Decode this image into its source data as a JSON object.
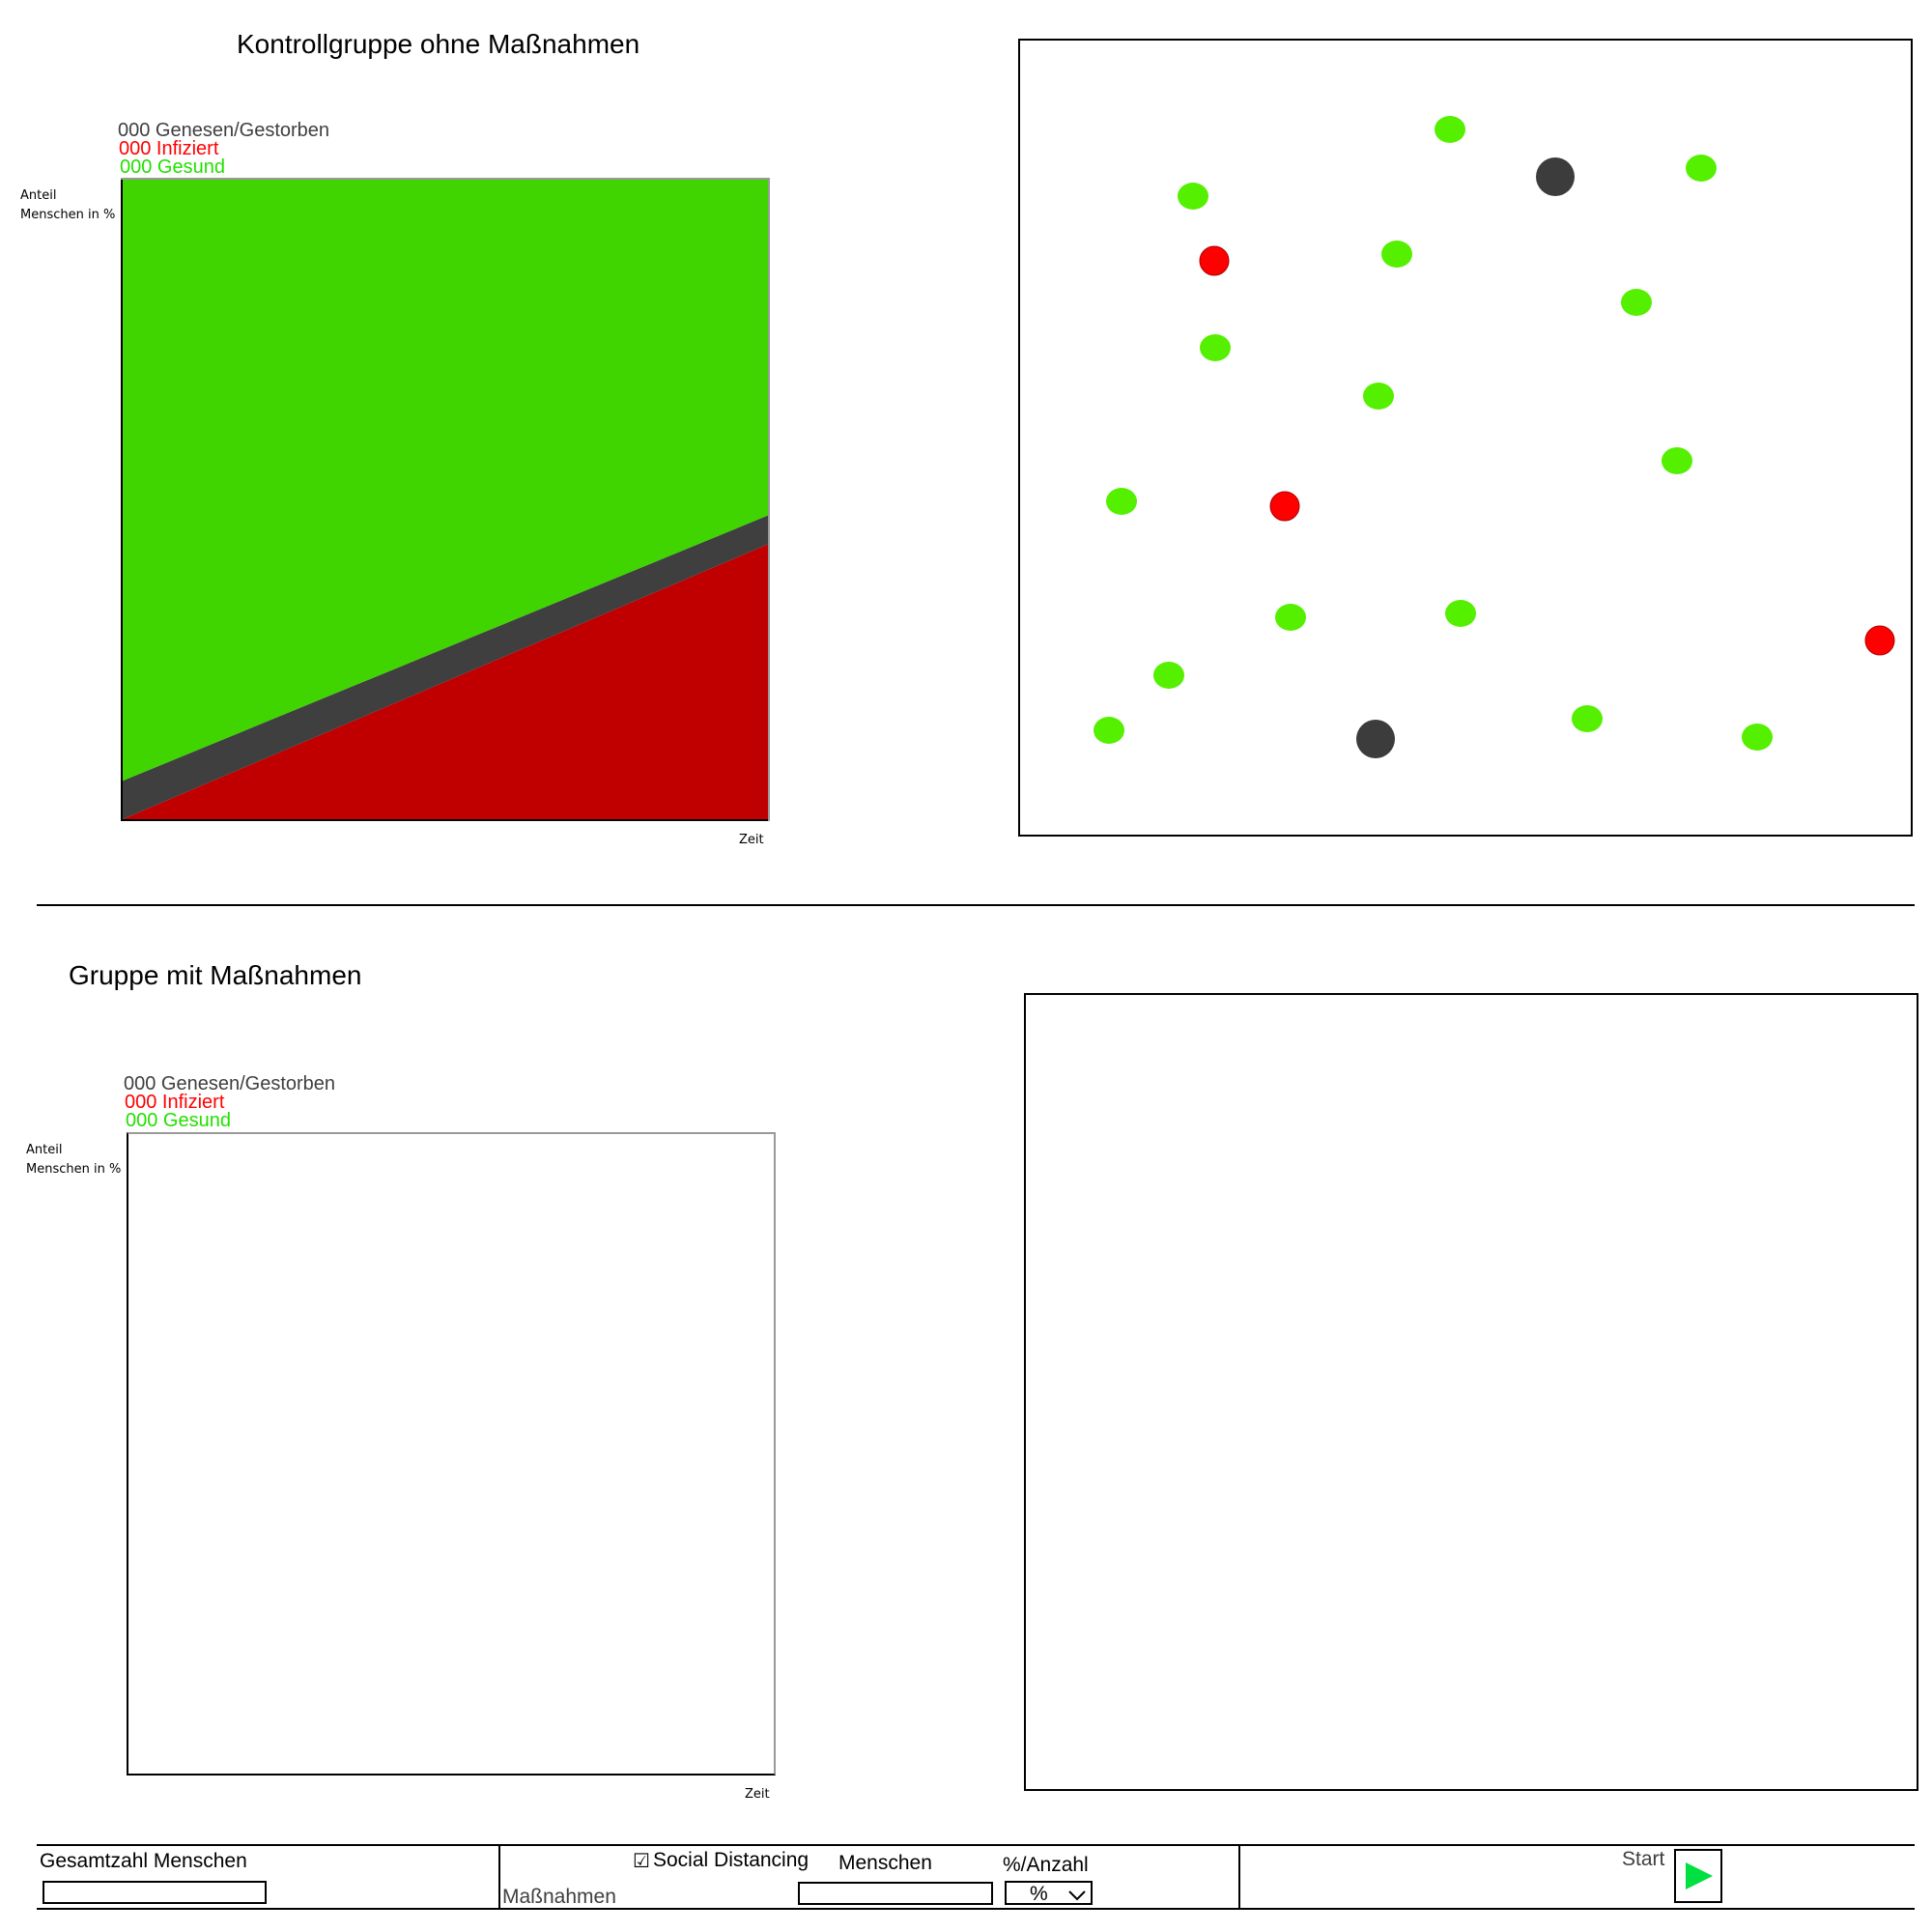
{
  "control_group": {
    "title": "Kontrollgruppe ohne Maßnahmen",
    "legend": {
      "recovered": "000 Genesen/Gestorben",
      "infected": "000 Infiziert",
      "healthy": "000 Gesund"
    },
    "y_axis_label_line1": "Anteil",
    "y_axis_label_line2": "Menschen in %",
    "x_axis_label": "Zeit"
  },
  "measures_group": {
    "title": "Gruppe mit Maßnahmen",
    "legend": {
      "recovered": "000 Genesen/Gestorben",
      "infected": "000 Infiziert",
      "healthy": "000 Gesund"
    },
    "y_axis_label_line1": "Anteil",
    "y_axis_label_line2": "Menschen in %",
    "x_axis_label": "Zeit"
  },
  "colors": {
    "healthy": "#40d400",
    "infected": "#c00000",
    "recovered": "#3f3f3f",
    "legend_recovered": "#3f3f3f",
    "legend_infected": "#ff0000",
    "legend_healthy": "#22e000",
    "dot_healthy": "#55f000",
    "dot_infected": "#ff0000",
    "dot_recovered": "#3c3c3c",
    "play": "#00e040"
  },
  "controls": {
    "total_people_label": "Gesamtzahl Menschen",
    "total_people_value": "",
    "social_distancing_checkbox": "☑",
    "social_distancing_label": "Social Distancing",
    "measures_label": "Maßnahmen",
    "people_label": "Menschen",
    "people_value": "",
    "mode_label": "%/Anzahl",
    "mode_selected": "%",
    "start_label": "Start"
  },
  "chart_data": {
    "type": "area",
    "stacked": true,
    "ylabel": "Anteil Menschen in %",
    "xlabel": "Zeit",
    "ylim": [
      0,
      100
    ],
    "x": [
      0,
      1
    ],
    "series": [
      {
        "name": "000 Infiziert",
        "values": [
          0,
          43
        ]
      },
      {
        "name": "000 Genesen/Gestorben",
        "values": [
          6,
          4.5
        ]
      },
      {
        "name": "000 Gesund",
        "values": [
          94,
          52.5
        ]
      }
    ]
  }
}
